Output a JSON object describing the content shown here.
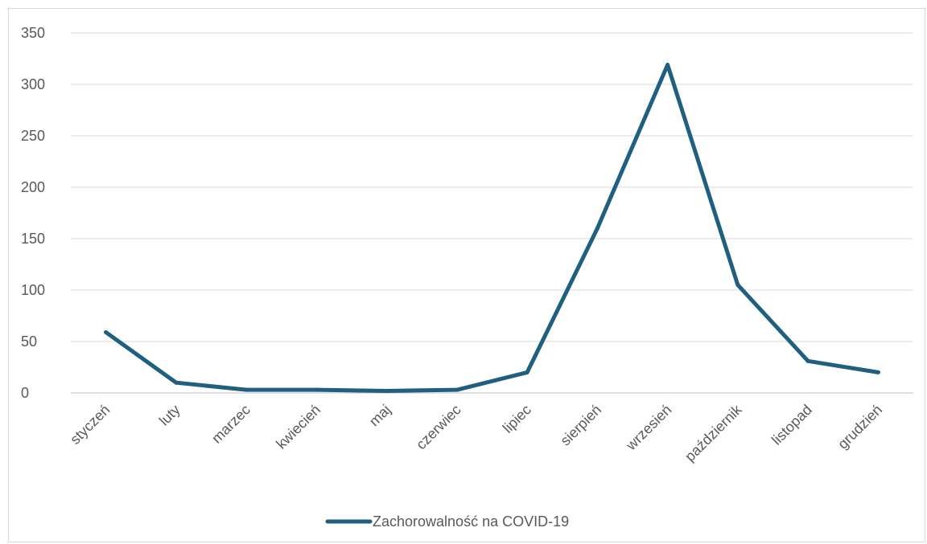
{
  "chart_data": {
    "type": "line",
    "categories": [
      "styczeń",
      "luty",
      "marzec",
      "kwiecień",
      "maj",
      "czerwiec",
      "lipiec",
      "sierpień",
      "wrzesień",
      "październik",
      "listopad",
      "grudzień"
    ],
    "series": [
      {
        "name": "Zachorowalność na COVID-19",
        "values": [
          59,
          10,
          3,
          3,
          2,
          3,
          20,
          160,
          319,
          105,
          31,
          20
        ],
        "color": "#1f5f7f"
      }
    ],
    "yticks": [
      "0",
      "50",
      "100",
      "150",
      "200",
      "250",
      "300",
      "350"
    ],
    "ylim": [
      0,
      350
    ],
    "grid": true,
    "legend_position": "bottom"
  }
}
